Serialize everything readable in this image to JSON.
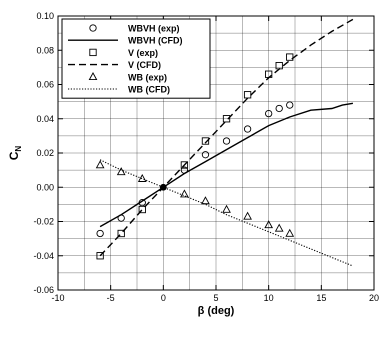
{
  "chart_data": {
    "type": "scatter",
    "xlabel": "β (deg)",
    "ylabel": "C",
    "ylabel_subscript": "N",
    "xlim": [
      -10,
      20
    ],
    "ylim": [
      -0.06,
      0.1
    ],
    "grid": true,
    "legend_position": "top-left",
    "x_ticks": [
      -10,
      -5,
      0,
      5,
      10,
      15,
      20
    ],
    "x_tick_labels": [
      "-10",
      "-5",
      "0",
      "5",
      "10",
      "15",
      "20"
    ],
    "y_ticks": [
      -0.06,
      -0.04,
      -0.02,
      0.0,
      0.02,
      0.04,
      0.06,
      0.08,
      0.1
    ],
    "y_tick_labels": [
      "-0.06",
      "-0.04",
      "-0.02",
      "0.00",
      "0.02",
      "0.04",
      "0.06",
      "0.08",
      "0.10"
    ],
    "origin_point": {
      "x": 0,
      "y": 0
    },
    "series": [
      {
        "name": "WBVH (exp)",
        "kind": "markers",
        "marker": "circle",
        "x": [
          -6,
          -4,
          -2,
          0,
          2,
          4,
          6,
          8,
          10,
          11,
          12
        ],
        "y": [
          -0.027,
          -0.018,
          -0.009,
          0.0,
          0.01,
          0.019,
          0.027,
          0.034,
          0.043,
          0.046,
          0.048
        ]
      },
      {
        "name": "WBVH (CFD)",
        "kind": "line",
        "dash": "solid",
        "x": [
          -6,
          -4,
          -2,
          0,
          2,
          4,
          6,
          8,
          10,
          12,
          14,
          16,
          17,
          18
        ],
        "y": [
          -0.023,
          -0.016,
          -0.008,
          0.0,
          0.008,
          0.015,
          0.022,
          0.029,
          0.036,
          0.041,
          0.045,
          0.046,
          0.048,
          0.049
        ]
      },
      {
        "name": "V (exp)",
        "kind": "markers",
        "marker": "square",
        "x": [
          -6,
          -4,
          -2,
          0,
          2,
          4,
          6,
          8,
          10,
          11,
          12
        ],
        "y": [
          -0.04,
          -0.027,
          -0.013,
          0.0,
          0.013,
          0.027,
          0.04,
          0.054,
          0.066,
          0.071,
          0.076
        ]
      },
      {
        "name": "V (CFD)",
        "kind": "line",
        "dash": "dashed",
        "x": [
          -6,
          -4,
          -2,
          0,
          2,
          4,
          6,
          8,
          10,
          12,
          14,
          16,
          18
        ],
        "y": [
          -0.04,
          -0.027,
          -0.013,
          0.0,
          0.013,
          0.026,
          0.039,
          0.052,
          0.064,
          0.074,
          0.083,
          0.091,
          0.098
        ]
      },
      {
        "name": "WB (exp)",
        "kind": "markers",
        "marker": "triangle",
        "x": [
          -6,
          -4,
          -2,
          0,
          2,
          4,
          6,
          8,
          10,
          11,
          12
        ],
        "y": [
          0.013,
          0.009,
          0.005,
          0.0,
          -0.004,
          -0.008,
          -0.013,
          -0.017,
          -0.022,
          -0.024,
          -0.027
        ]
      },
      {
        "name": "WB (CFD)",
        "kind": "line",
        "dash": "dotted",
        "x": [
          -6,
          -4,
          -2,
          0,
          2,
          4,
          6,
          8,
          10,
          12,
          14,
          16,
          18
        ],
        "y": [
          0.016,
          0.01,
          0.005,
          0.0,
          -0.005,
          -0.01,
          -0.016,
          -0.021,
          -0.026,
          -0.031,
          -0.036,
          -0.041,
          -0.046
        ]
      }
    ]
  }
}
